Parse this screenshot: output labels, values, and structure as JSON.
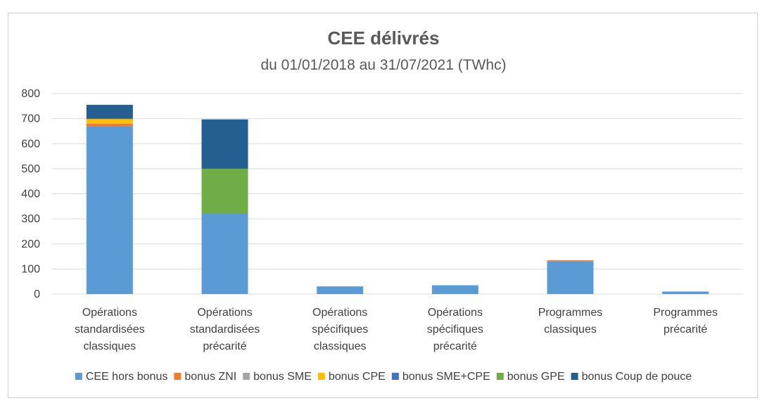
{
  "chart_data": {
    "type": "bar",
    "stacked": true,
    "title": "CEE délivrés",
    "subtitle": "du 01/01/2018 au 31/07/2021 (TWhc)",
    "categories": [
      [
        "Opérations",
        "standardisées",
        "classiques"
      ],
      [
        "Opérations",
        "standardisées",
        "précarité"
      ],
      [
        "Opérations",
        "spécifiques",
        "classiques"
      ],
      [
        "Opérations",
        "spécifiques",
        "précarité"
      ],
      [
        "Programmes",
        "classiques"
      ],
      [
        "Programmes",
        "précarité"
      ]
    ],
    "yticks": [
      "0",
      "100",
      "200",
      "300",
      "400",
      "500",
      "600",
      "700",
      "800"
    ],
    "ylim": [
      0,
      800
    ],
    "grid": true,
    "legend_position": "bottom",
    "series": [
      {
        "name": "CEE hors bonus",
        "color": "#5b9bd5",
        "values": [
          668,
          320,
          30,
          35,
          130,
          10
        ]
      },
      {
        "name": "bonus ZNI",
        "color": "#ed7d31",
        "values": [
          12,
          0,
          1,
          0,
          5,
          0
        ]
      },
      {
        "name": "bonus SME",
        "color": "#a5a5a5",
        "values": [
          0,
          0,
          0,
          0,
          0,
          0
        ]
      },
      {
        "name": "bonus CPE",
        "color": "#ffc000",
        "values": [
          18,
          0,
          0,
          0,
          0,
          0
        ]
      },
      {
        "name": "bonus SME+CPE",
        "color": "#4472c4",
        "values": [
          2,
          0,
          0,
          0,
          0,
          0
        ]
      },
      {
        "name": "bonus GPE",
        "color": "#70ad47",
        "values": [
          0,
          180,
          0,
          0,
          0,
          0
        ]
      },
      {
        "name": "bonus Coup de pouce",
        "color": "#255e91",
        "values": [
          55,
          197,
          0,
          0,
          0,
          0
        ]
      }
    ]
  }
}
